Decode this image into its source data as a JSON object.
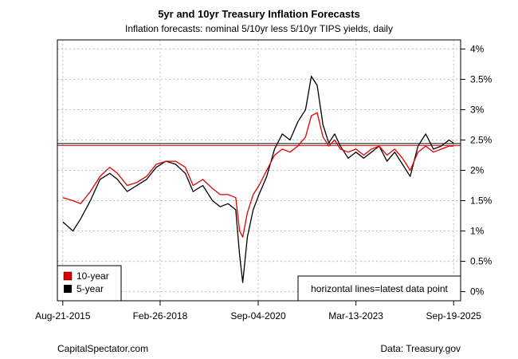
{
  "chart_data": {
    "type": "line",
    "title": "5yr and 10yr Treasury Inflation Forecasts",
    "subtitle": "Inflation forecasts: nominal 5/10yr less 5/10yr TIPS yields, daily",
    "xlabel": "",
    "ylabel": "",
    "xlim": [
      2015.5,
      2025.9
    ],
    "ylim": [
      -0.15,
      4.15
    ],
    "y_ticks": [
      0,
      0.5,
      1,
      1.5,
      2,
      2.5,
      3,
      3.5,
      4
    ],
    "y_tick_labels": [
      "0%",
      "0.5%",
      "1%",
      "1.5%",
      "2%",
      "2.5%",
      "3%",
      "3.5%",
      "4%"
    ],
    "x_ticks": [
      2015.64,
      2018.15,
      2020.68,
      2023.2,
      2025.72
    ],
    "x_tick_labels": [
      "Aug-21-2015",
      "Feb-26-2018",
      "Sep-04-2020",
      "Mar-13-2023",
      "Sep-19-2025"
    ],
    "grid": true,
    "legend_position": "bottom-left",
    "series": [
      {
        "name": "10-year",
        "color": "#e00000",
        "x": [
          2015.64,
          2015.9,
          2016.1,
          2016.35,
          2016.6,
          2016.85,
          2017.05,
          2017.3,
          2017.55,
          2017.8,
          2018.05,
          2018.3,
          2018.55,
          2018.8,
          2019.0,
          2019.25,
          2019.5,
          2019.7,
          2019.9,
          2020.1,
          2020.2,
          2020.28,
          2020.4,
          2020.55,
          2020.7,
          2020.9,
          2021.1,
          2021.3,
          2021.5,
          2021.7,
          2021.9,
          2022.05,
          2022.2,
          2022.35,
          2022.5,
          2022.65,
          2022.8,
          2023.0,
          2023.2,
          2023.4,
          2023.6,
          2023.8,
          2024.0,
          2024.2,
          2024.4,
          2024.6,
          2024.8,
          2025.0,
          2025.2,
          2025.4,
          2025.6,
          2025.72
        ],
        "values": [
          1.55,
          1.5,
          1.45,
          1.65,
          1.9,
          2.05,
          1.95,
          1.75,
          1.8,
          1.9,
          2.1,
          2.15,
          2.15,
          2.05,
          1.75,
          1.85,
          1.7,
          1.6,
          1.6,
          1.55,
          1.0,
          0.9,
          1.3,
          1.6,
          1.75,
          2.0,
          2.25,
          2.35,
          2.3,
          2.4,
          2.55,
          2.9,
          2.95,
          2.55,
          2.4,
          2.5,
          2.35,
          2.3,
          2.35,
          2.25,
          2.35,
          2.4,
          2.25,
          2.35,
          2.2,
          2.0,
          2.3,
          2.4,
          2.3,
          2.35,
          2.4,
          2.4
        ]
      },
      {
        "name": "5-year",
        "color": "#000000",
        "x": [
          2015.64,
          2015.9,
          2016.1,
          2016.35,
          2016.6,
          2016.85,
          2017.05,
          2017.3,
          2017.55,
          2017.8,
          2018.05,
          2018.3,
          2018.55,
          2018.8,
          2019.0,
          2019.25,
          2019.5,
          2019.7,
          2019.9,
          2020.1,
          2020.2,
          2020.28,
          2020.4,
          2020.55,
          2020.7,
          2020.9,
          2021.1,
          2021.3,
          2021.5,
          2021.7,
          2021.9,
          2022.05,
          2022.2,
          2022.35,
          2022.5,
          2022.65,
          2022.8,
          2023.0,
          2023.2,
          2023.4,
          2023.6,
          2023.8,
          2024.0,
          2024.2,
          2024.4,
          2024.6,
          2024.8,
          2025.0,
          2025.2,
          2025.4,
          2025.6,
          2025.72
        ],
        "values": [
          1.15,
          1.0,
          1.2,
          1.5,
          1.85,
          1.95,
          1.85,
          1.65,
          1.75,
          1.85,
          2.05,
          2.15,
          2.1,
          1.95,
          1.65,
          1.75,
          1.5,
          1.4,
          1.45,
          1.35,
          0.6,
          0.15,
          0.9,
          1.35,
          1.6,
          1.9,
          2.35,
          2.6,
          2.5,
          2.8,
          3.0,
          3.55,
          3.4,
          2.75,
          2.45,
          2.6,
          2.4,
          2.2,
          2.3,
          2.2,
          2.3,
          2.4,
          2.15,
          2.3,
          2.1,
          1.9,
          2.4,
          2.6,
          2.35,
          2.4,
          2.5,
          2.45
        ]
      }
    ],
    "reference_lines": [
      {
        "series": "10-year",
        "value": 2.41,
        "color": "#e00000"
      },
      {
        "series": "5-year",
        "value": 2.44,
        "color": "#000000"
      }
    ],
    "annotation": "horizontal lines=latest data point"
  },
  "footer": {
    "left": "CapitalSpectator.com",
    "right": "Data: Treasury.gov"
  }
}
